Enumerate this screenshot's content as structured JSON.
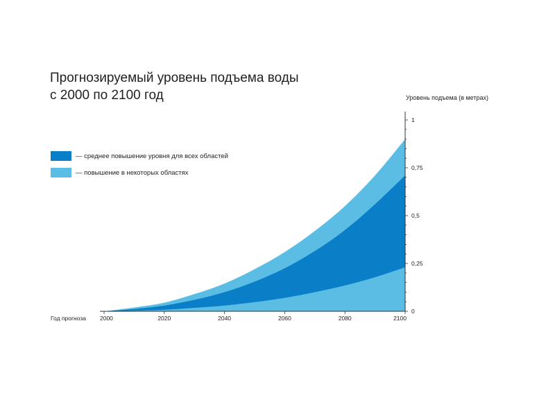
{
  "chart_data": {
    "type": "area",
    "title": "Прогнозируемый уровень подъема воды",
    "subtitle": "с 2000 по 2100 год",
    "xlabel": "Год прогноза",
    "ylabel": "Уровень подъема (в метрах)",
    "x_ticks": [
      "2000",
      "2020",
      "2040",
      "2060",
      "2080",
      "2100"
    ],
    "y_ticks": [
      "0",
      "0,25",
      "0,5",
      "0,75",
      "1"
    ],
    "xlim": [
      2000,
      2100
    ],
    "ylim": [
      0,
      1
    ],
    "y_axis_position": "right",
    "grid": false,
    "legend_position": "left",
    "x": [
      2000,
      2010,
      2020,
      2030,
      2040,
      2050,
      2060,
      2070,
      2080,
      2090,
      2100
    ],
    "series": [
      {
        "name": "— повышение в некоторых областях",
        "color": "#5bbde4",
        "values": [
          0,
          0.02,
          0.045,
          0.09,
          0.145,
          0.22,
          0.31,
          0.42,
          0.55,
          0.71,
          0.9
        ]
      },
      {
        "name": "— среднее повышение уровня для всех областей",
        "color": "#0a7fc8",
        "values": [
          0,
          0.012,
          0.03,
          0.06,
          0.1,
          0.155,
          0.225,
          0.315,
          0.425,
          0.56,
          0.71
        ]
      },
      {
        "name": "",
        "color": "#5bbde4",
        "values": [
          0,
          0.003,
          0.008,
          0.018,
          0.03,
          0.048,
          0.07,
          0.1,
          0.135,
          0.178,
          0.23
        ]
      }
    ]
  }
}
